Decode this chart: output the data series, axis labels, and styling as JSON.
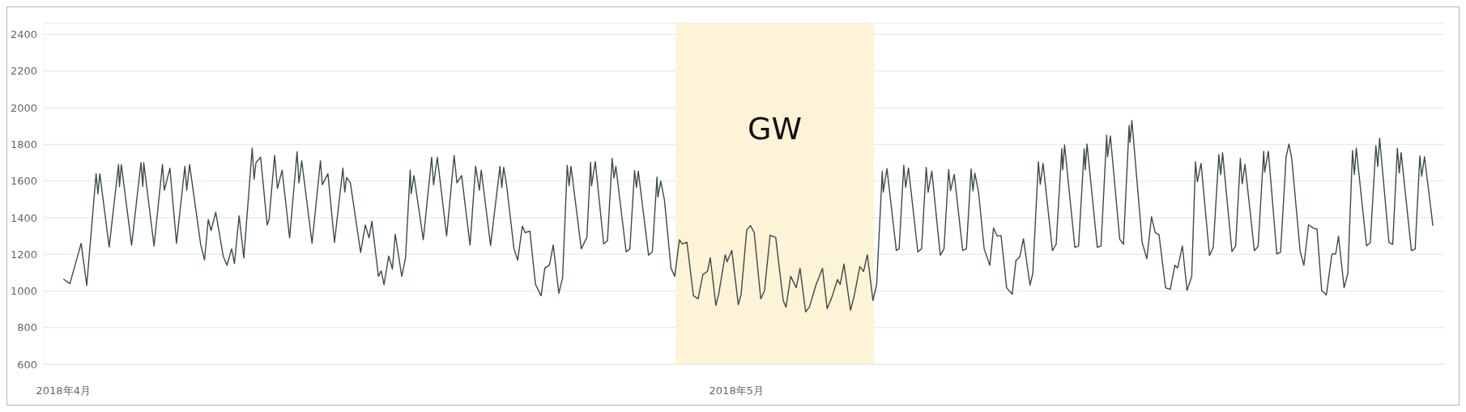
{
  "chart_data": {
    "type": "line",
    "color": "#3b4a4c",
    "x": [
      "2018-04-01T00:00",
      "2018-04-01T07:00",
      "2018-04-01T19:00",
      "2018-04-02T01:00",
      "2018-04-02T11:00",
      "2018-04-02T13:00",
      "2018-04-02T15:00",
      "2018-04-03T01:00",
      "2018-04-03T11:00",
      "2018-04-03T12:00",
      "2018-04-03T14:00",
      "2018-04-04T01:00",
      "2018-04-04T11:00",
      "2018-04-04T13:00",
      "2018-04-04T14:00",
      "2018-04-05T01:00",
      "2018-04-05T10:00",
      "2018-04-05T12:00",
      "2018-04-05T18:00",
      "2018-04-06T01:00",
      "2018-04-06T10:00",
      "2018-04-06T12:00",
      "2018-04-06T15:00",
      "2018-04-07T03:00",
      "2018-04-07T07:00",
      "2018-04-07T11:00",
      "2018-04-07T14:00",
      "2018-04-07T19:00",
      "2018-04-08T03:00",
      "2018-04-08T07:00",
      "2018-04-08T12:00",
      "2018-04-08T15:00",
      "2018-04-08T20:00",
      "2018-04-09T01:00",
      "2018-04-09T10:00",
      "2018-04-09T12:00",
      "2018-04-09T14:00",
      "2018-04-09T19:00",
      "2018-04-10T02:00",
      "2018-04-10T04:00",
      "2018-04-10T10:00",
      "2018-04-10T13:00",
      "2018-04-10T18:00",
      "2018-04-11T02:00",
      "2018-04-11T10:00",
      "2018-04-11T12:00",
      "2018-04-11T15:00",
      "2018-04-12T02:00",
      "2018-04-12T11:00",
      "2018-04-12T13:00",
      "2018-04-12T19:00",
      "2018-04-13T02:00",
      "2018-04-13T11:00",
      "2018-04-13T13:00",
      "2018-04-13T15:00",
      "2018-04-13T19:00",
      "2018-04-14T06:00",
      "2018-04-14T11:00",
      "2018-04-14T15:00",
      "2018-04-14T18:00",
      "2018-04-15T01:00",
      "2018-04-15T04:00",
      "2018-04-15T07:00",
      "2018-04-15T12:00",
      "2018-04-15T16:00",
      "2018-04-15T19:00",
      "2018-04-16T02:00",
      "2018-04-16T06:00",
      "2018-04-16T11:00",
      "2018-04-16T12:00",
      "2018-04-16T15:00",
      "2018-04-17T01:00",
      "2018-04-17T10:00",
      "2018-04-17T12:00",
      "2018-04-17T16:00",
      "2018-04-18T02:00",
      "2018-04-18T10:00",
      "2018-04-18T13:00",
      "2018-04-18T18:00",
      "2018-04-19T03:00",
      "2018-04-19T09:00",
      "2018-04-19T13:00",
      "2018-04-19T15:00",
      "2018-04-20T01:00",
      "2018-04-20T11:00",
      "2018-04-20T13:00",
      "2018-04-20T15:00",
      "2018-04-20T18:00",
      "2018-04-21T02:00",
      "2018-04-21T06:00",
      "2018-04-21T11:00",
      "2018-04-21T14:00",
      "2018-04-21T19:00",
      "2018-04-22T01:00",
      "2018-04-22T07:00",
      "2018-04-22T11:00",
      "2018-04-22T16:00",
      "2018-04-22T20:00",
      "2018-04-23T02:00",
      "2018-04-23T06:00",
      "2018-04-23T11:00",
      "2018-04-23T13:00",
      "2018-04-23T15:00",
      "2018-04-24T02:00",
      "2018-04-24T08:00",
      "2018-04-24T12:00",
      "2018-04-24T13:00",
      "2018-04-24T17:00",
      "2018-04-25T02:00",
      "2018-04-25T06:00",
      "2018-04-25T11:00",
      "2018-04-25T13:00",
      "2018-04-25T15:00",
      "2018-04-26T02:00",
      "2018-04-26T06:00",
      "2018-04-26T11:00",
      "2018-04-26T13:00",
      "2018-04-26T15:00",
      "2018-04-27T02:00",
      "2018-04-27T06:00",
      "2018-04-27T11:00",
      "2018-04-27T12:00",
      "2018-04-27T15:00",
      "2018-04-27T19:00",
      "2018-04-28T02:00",
      "2018-04-28T06:00",
      "2018-04-28T11:00",
      "2018-04-28T14:00",
      "2018-04-28T19:00",
      "2018-04-29T02:00",
      "2018-04-29T07:00",
      "2018-04-29T12:00",
      "2018-04-29T17:00",
      "2018-04-29T20:00",
      "2018-04-30T02:00",
      "2018-04-30T05:00",
      "2018-04-30T12:00",
      "2018-04-30T14:00",
      "2018-04-30T19:00",
      "2018-05-01T02:00",
      "2018-05-01T05:00",
      "2018-05-01T11:00",
      "2018-05-01T15:00",
      "2018-05-01T19:00",
      "2018-05-02T02:00",
      "2018-05-02T06:00",
      "2018-05-02T12:00",
      "2018-05-02T18:00",
      "2018-05-03T02:00",
      "2018-05-03T05:00",
      "2018-05-03T10:00",
      "2018-05-03T16:00",
      "2018-05-03T20:00",
      "2018-05-04T02:00",
      "2018-05-04T06:00",
      "2018-05-04T13:00",
      "2018-05-04T20:00",
      "2018-05-05T01:00",
      "2018-05-05T06:00",
      "2018-05-05T12:00",
      "2018-05-05T15:00",
      "2018-05-05T19:00",
      "2018-05-06T02:00",
      "2018-05-06T06:00",
      "2018-05-06T12:00",
      "2018-05-06T16:00",
      "2018-05-06T20:00",
      "2018-05-07T02:00",
      "2018-05-07T06:00",
      "2018-05-07T12:00",
      "2018-05-07T13:00",
      "2018-05-07T17:00",
      "2018-05-08T03:00",
      "2018-05-08T06:00",
      "2018-05-08T11:00",
      "2018-05-08T13:00",
      "2018-05-08T16:00",
      "2018-05-09T02:00",
      "2018-05-09T06:00",
      "2018-05-09T11:00",
      "2018-05-09T13:00",
      "2018-05-09T17:00",
      "2018-05-10T02:00",
      "2018-05-10T06:00",
      "2018-05-10T11:00",
      "2018-05-10T13:00",
      "2018-05-10T17:00",
      "2018-05-11T02:00",
      "2018-05-11T06:00",
      "2018-05-11T11:00",
      "2018-05-11T13:00",
      "2018-05-11T15:00",
      "2018-05-11T19:00",
      "2018-05-12T01:00",
      "2018-05-12T07:00",
      "2018-05-12T11:00",
      "2018-05-12T15:00",
      "2018-05-12T19:00",
      "2018-05-13T01:00",
      "2018-05-13T07:00",
      "2018-05-13T11:00",
      "2018-05-13T15:00",
      "2018-05-13T19:00",
      "2018-05-14T02:00",
      "2018-05-14T05:00",
      "2018-05-14T11:00",
      "2018-05-14T13:00",
      "2018-05-14T16:00",
      "2018-05-15T02:00",
      "2018-05-15T06:00",
      "2018-05-15T12:00",
      "2018-05-15T13:00",
      "2018-05-15T15:00",
      "2018-05-16T02:00",
      "2018-05-16T06:00",
      "2018-05-16T12:00",
      "2018-05-16T13:00",
      "2018-05-16T15:00",
      "2018-05-17T02:00",
      "2018-05-17T06:00",
      "2018-05-17T12:00",
      "2018-05-17T13:00",
      "2018-05-17T16:00",
      "2018-05-18T02:00",
      "2018-05-18T06:00",
      "2018-05-18T12:00",
      "2018-05-18T13:00",
      "2018-05-18T15:00",
      "2018-05-19T02:00",
      "2018-05-19T07:00",
      "2018-05-19T12:00",
      "2018-05-19T16:00",
      "2018-05-19T20:00",
      "2018-05-20T03:00",
      "2018-05-20T08:00",
      "2018-05-20T13:00",
      "2018-05-20T16:00",
      "2018-05-20T21:00",
      "2018-05-21T02:00",
      "2018-05-21T07:00",
      "2018-05-21T11:00",
      "2018-05-21T13:00",
      "2018-05-21T17:00",
      "2018-05-22T02:00",
      "2018-05-22T06:00",
      "2018-05-22T12:00",
      "2018-05-22T14:00",
      "2018-05-22T16:00",
      "2018-05-23T02:00",
      "2018-05-23T06:00",
      "2018-05-23T11:00",
      "2018-05-23T13:00",
      "2018-05-23T16:00",
      "2018-05-24T02:00",
      "2018-05-24T06:00",
      "2018-05-24T12:00",
      "2018-05-24T13:00",
      "2018-05-24T17:00",
      "2018-05-25T02:00",
      "2018-05-25T06:00",
      "2018-05-25T12:00",
      "2018-05-25T15:00",
      "2018-05-25T18:00",
      "2018-05-26T03:00",
      "2018-05-26T07:00",
      "2018-05-26T12:00",
      "2018-05-26T17:00",
      "2018-05-26T21:00",
      "2018-05-27T02:00",
      "2018-05-27T07:00",
      "2018-05-27T13:00",
      "2018-05-27T17:00",
      "2018-05-27T20:00",
      "2018-05-28T02:00",
      "2018-05-28T06:00",
      "2018-05-28T11:00",
      "2018-05-28T13:00",
      "2018-05-28T15:00",
      "2018-05-29T02:00",
      "2018-05-29T06:00",
      "2018-05-29T12:00",
      "2018-05-29T14:00",
      "2018-05-29T16:00",
      "2018-05-30T02:00",
      "2018-05-30T06:00",
      "2018-05-30T11:00",
      "2018-05-30T13:00",
      "2018-05-30T15:00",
      "2018-05-31T02:00",
      "2018-05-31T06:00",
      "2018-05-31T11:00",
      "2018-05-31T13:00",
      "2018-05-31T16:00",
      "2018-06-01T01:00"
    ],
    "values": [
      1065,
      1040,
      1260,
      1030,
      1640,
      1530,
      1640,
      1240,
      1690,
      1570,
      1690,
      1250,
      1700,
      1570,
      1700,
      1245,
      1690,
      1550,
      1670,
      1260,
      1680,
      1550,
      1690,
      1250,
      1170,
      1390,
      1330,
      1430,
      1190,
      1140,
      1230,
      1150,
      1410,
      1180,
      1780,
      1610,
      1700,
      1730,
      1360,
      1390,
      1740,
      1560,
      1660,
      1290,
      1760,
      1590,
      1710,
      1260,
      1710,
      1580,
      1640,
      1265,
      1670,
      1540,
      1620,
      1590,
      1210,
      1360,
      1290,
      1380,
      1080,
      1110,
      1035,
      1190,
      1120,
      1310,
      1080,
      1180,
      1660,
      1530,
      1630,
      1280,
      1730,
      1580,
      1730,
      1300,
      1740,
      1590,
      1630,
      1250,
      1680,
      1550,
      1660,
      1248,
      1680,
      1565,
      1675,
      1583,
      1230,
      1168,
      1354,
      1318,
      1327,
      1036,
      974,
      1124,
      1142,
      1251,
      987,
      1071,
      1686,
      1574,
      1680,
      1230,
      1292,
      1703,
      1574,
      1706,
      1257,
      1274,
      1724,
      1618,
      1680,
      1213,
      1230,
      1657,
      1565,
      1654,
      1195,
      1213,
      1622,
      1513,
      1600,
      1495,
      1124,
      1080,
      1280,
      1257,
      1266,
      974,
      957,
      1089,
      1107,
      1181,
      921,
      983,
      1198,
      1160,
      1221,
      925,
      983,
      1333,
      1357,
      1318,
      957,
      1001,
      1304,
      1292,
      948,
      912,
      1080,
      1018,
      1124,
      886,
      912,
      1032,
      1124,
      904,
      965,
      1062,
      1036,
      1147,
      895,
      974,
      1133,
      1107,
      1198,
      948,
      1036,
      1654,
      1540,
      1668,
      1221,
      1230,
      1686,
      1566,
      1671,
      1213,
      1230,
      1675,
      1539,
      1654,
      1195,
      1230,
      1663,
      1548,
      1636,
      1221,
      1230,
      1666,
      1546,
      1643,
      1538,
      1229,
      1140,
      1343,
      1299,
      1303,
      1017,
      982,
      1167,
      1185,
      1285,
      1031,
      1096,
      1705,
      1582,
      1696,
      1220,
      1255,
      1776,
      1661,
      1797,
      1238,
      1246,
      1776,
      1661,
      1802,
      1238,
      1246,
      1850,
      1732,
      1846,
      1282,
      1255,
      1903,
      1811,
      1931,
      1264,
      1176,
      1405,
      1317,
      1308,
      1017,
      1008,
      1140,
      1126,
      1246,
      1003,
      1079,
      1705,
      1596,
      1696,
      1193,
      1238,
      1744,
      1635,
      1755,
      1215,
      1246,
      1723,
      1585,
      1691,
      1220,
      1243,
      1762,
      1649,
      1762,
      1202,
      1211,
      1732,
      1802,
      1723,
      1215,
      1140,
      1361,
      1343,
      1338,
      1003,
      978,
      1202,
      1202,
      1299,
      1017,
      1096,
      1767,
      1635,
      1779,
      1246,
      1264,
      1793,
      1679,
      1834,
      1264,
      1255,
      1779,
      1644,
      1755,
      1220,
      1229,
      1737,
      1626,
      1732,
      1356
    ],
    "xlim": [
      "2018-03-31T03:00",
      "2018-06-01T13:00"
    ],
    "xticks": [
      {
        "value": "2018-04-01",
        "label": "2018年4月"
      },
      {
        "value": "2018-05-01",
        "label": "2018年5月"
      }
    ],
    "ylim": [
      600,
      2460
    ],
    "yticks": [
      600,
      800,
      1000,
      1200,
      1400,
      1600,
      1800,
      2000,
      2200,
      2400
    ],
    "grid": "y",
    "bands": [
      {
        "axis": "x",
        "from": "2018-04-28T07:00",
        "to": "2018-05-07T03:00",
        "label": "GW",
        "color": "#fdf3d6"
      }
    ]
  }
}
